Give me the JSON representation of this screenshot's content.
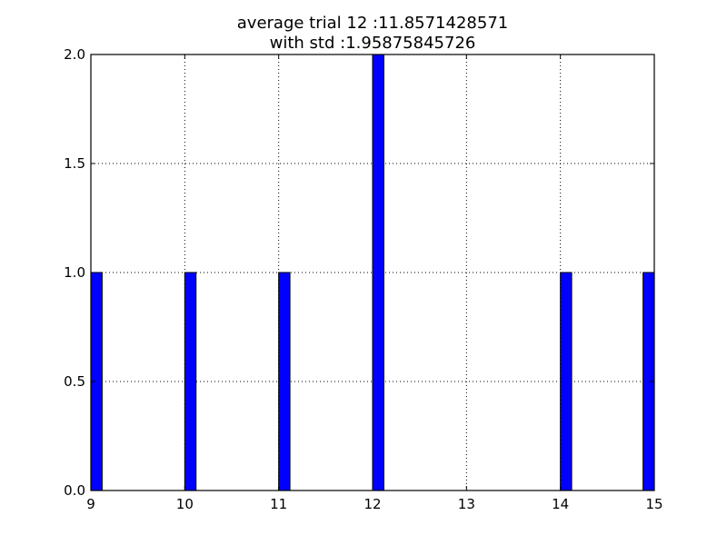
{
  "chart_data": {
    "type": "bar",
    "title": [
      "average trial 12 :11.8571428571",
      "with std :1.95875845726"
    ],
    "xlabel": "",
    "ylabel": "",
    "xlim": [
      9,
      15
    ],
    "ylim": [
      0,
      2.0
    ],
    "bar_width": 0.12,
    "bar_color": "#0000ff",
    "grid": true,
    "x_ticks": [
      {
        "value": 9,
        "label": "9"
      },
      {
        "value": 10,
        "label": "10"
      },
      {
        "value": 11,
        "label": "11"
      },
      {
        "value": 12,
        "label": "12"
      },
      {
        "value": 13,
        "label": "13"
      },
      {
        "value": 14,
        "label": "14"
      },
      {
        "value": 15,
        "label": "15"
      }
    ],
    "y_ticks": [
      {
        "value": 0.0,
        "label": "0.0"
      },
      {
        "value": 0.5,
        "label": "0.5"
      },
      {
        "value": 1.0,
        "label": "1.0"
      },
      {
        "value": 1.5,
        "label": "1.5"
      },
      {
        "value": 2.0,
        "label": "2.0"
      }
    ],
    "bars": [
      {
        "x": 9.0,
        "value": 1
      },
      {
        "x": 10.0,
        "value": 1
      },
      {
        "x": 11.0,
        "value": 1
      },
      {
        "x": 12.0,
        "value": 2
      },
      {
        "x": 14.0,
        "value": 1
      },
      {
        "x": 14.88,
        "value": 1
      }
    ]
  }
}
